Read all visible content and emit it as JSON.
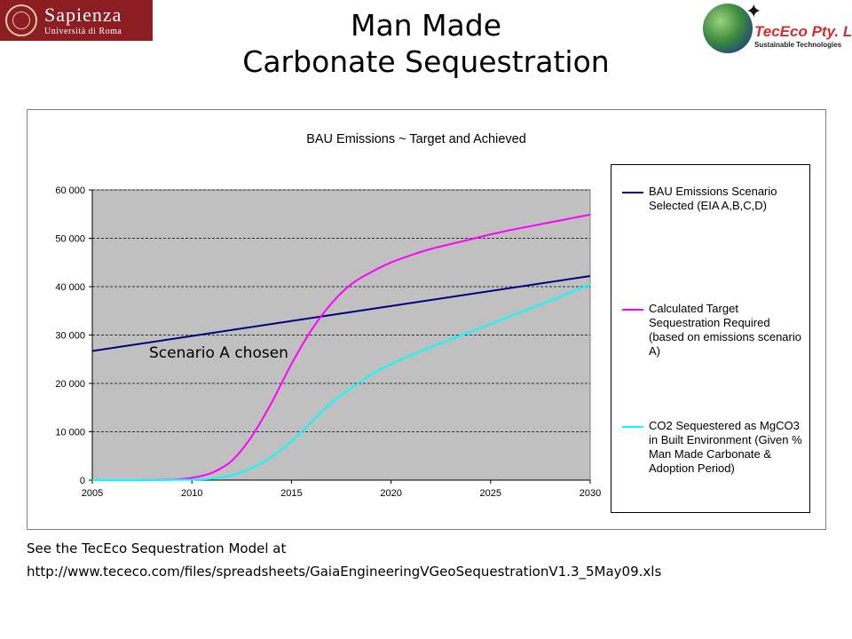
{
  "logos": {
    "left": {
      "line1": "Sapienza",
      "line2": "Università di Roma"
    },
    "right": {
      "name": "TecEco Pty. Ltd.",
      "tagline": "Sustainable Technologies"
    }
  },
  "slide": {
    "title_line1": "Man Made",
    "title_line2": "Carbonate Sequestration"
  },
  "annotation": "Scenario A chosen",
  "footer": {
    "line1": "See the TecEco Sequestration Model at",
    "line2": "http://www.tececo.com/files/spreadsheets/GaiaEngineeringVGeoSequestrationV1.3_5May09.xls"
  },
  "chart_data": {
    "type": "line",
    "title": "BAU Emissions ~ Target and Achieved",
    "xlabel": "",
    "ylabel": "",
    "xlim": [
      2005,
      2030
    ],
    "ylim": [
      0,
      60000
    ],
    "xticks": [
      2005,
      2010,
      2015,
      2020,
      2025,
      2030
    ],
    "xtick_labels": [
      "2005",
      "2010",
      "2015",
      "2020",
      "2025",
      "2030"
    ],
    "yticks": [
      0,
      10000,
      20000,
      30000,
      40000,
      50000,
      60000
    ],
    "ytick_labels": [
      "0",
      "10 000",
      "20 000",
      "30 000",
      "40 000",
      "50 000",
      "60 000"
    ],
    "grid": "horizontal dashed",
    "plot_background": "#c0c0c0",
    "legend_position": "right",
    "series": [
      {
        "name": "BAU Emissions Scenario Selected (EIA  A,B,C,D)",
        "color": "#000080",
        "x": [
          2005,
          2030
        ],
        "y": [
          26700,
          42200
        ]
      },
      {
        "name": "Calculated Target Sequestration Required (based on emissions scenario A)",
        "color": "#ff00ff",
        "x": [
          2005,
          2007,
          2009,
          2010,
          2011,
          2012,
          2013,
          2014,
          2015,
          2016,
          2017,
          2018,
          2019,
          2020,
          2021,
          2022,
          2023,
          2024,
          2025,
          2026,
          2027,
          2028,
          2029,
          2030
        ],
        "y": [
          0,
          0,
          100,
          500,
          1500,
          4000,
          9000,
          16000,
          24000,
          31000,
          36500,
          40500,
          43000,
          45000,
          46500,
          47800,
          48800,
          49800,
          50800,
          51700,
          52500,
          53300,
          54100,
          54900
        ]
      },
      {
        "name": "CO2 Sequestered as MgCO3 in Built Environment (Given % Man Made Carbonate & Adoption Period)",
        "color": "#00ffff",
        "x": [
          2005,
          2008,
          2010,
          2011,
          2012,
          2013,
          2014,
          2015,
          2016,
          2017,
          2018,
          2019,
          2020,
          2021,
          2022,
          2023,
          2024,
          2025,
          2026,
          2027,
          2028,
          2029,
          2030
        ],
        "y": [
          0,
          0,
          100,
          300,
          1000,
          2500,
          4800,
          8000,
          12000,
          16000,
          19000,
          21800,
          24000,
          25800,
          27500,
          29100,
          30700,
          32300,
          33900,
          35500,
          37100,
          38800,
          40500
        ]
      }
    ]
  }
}
